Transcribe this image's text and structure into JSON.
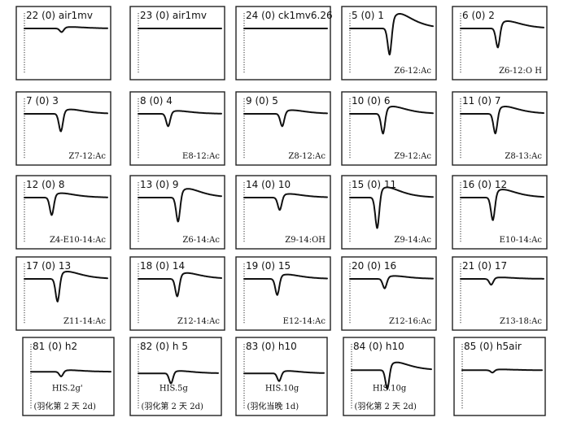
{
  "chart_data": [
    {
      "type": "line",
      "header": "22 (0)  air1mv",
      "label": "",
      "note": "",
      "baseline": 0.3,
      "events": [
        {
          "x": 0.45,
          "dip": 0.05,
          "rise": 0.02
        }
      ]
    },
    {
      "type": "line",
      "header": "23 (0)  air1mv",
      "label": "",
      "note": "",
      "baseline": 0.3,
      "events": []
    },
    {
      "type": "line",
      "header": "24 (0)  ck1mv6.26",
      "label": "",
      "note": "",
      "baseline": 0.3,
      "events": []
    },
    {
      "type": "line",
      "header": "5 (0)  1",
      "label": "Z6-12:Ac",
      "note": "",
      "baseline": 0.3,
      "events": [
        {
          "x": 0.48,
          "dip": 0.36,
          "rise": 0.2
        }
      ]
    },
    {
      "type": "line",
      "header": "6 (0)  2",
      "label": "Z6-12:O H",
      "note": "",
      "baseline": 0.3,
      "events": [
        {
          "x": 0.45,
          "dip": 0.26,
          "rise": 0.1
        }
      ]
    },
    {
      "type": "line",
      "header": "7 (0)  3",
      "label": "Z7-12:Ac",
      "note": "",
      "baseline": 0.3,
      "events": [
        {
          "x": 0.44,
          "dip": 0.24,
          "rise": 0.06
        }
      ]
    },
    {
      "type": "line",
      "header": "8 (0)  4",
      "label": "E8-12:Ac",
      "note": "",
      "baseline": 0.3,
      "events": [
        {
          "x": 0.36,
          "dip": 0.17,
          "rise": 0.04
        }
      ]
    },
    {
      "type": "line",
      "header": "9 (0)  5",
      "label": "Z8-12:Ac",
      "note": "",
      "baseline": 0.3,
      "events": [
        {
          "x": 0.46,
          "dip": 0.17,
          "rise": 0.05
        }
      ]
    },
    {
      "type": "line",
      "header": "10 (0)  6",
      "label": "Z9-12:Ac",
      "note": "",
      "baseline": 0.3,
      "events": [
        {
          "x": 0.4,
          "dip": 0.27,
          "rise": 0.1
        }
      ]
    },
    {
      "type": "line",
      "header": "11 (0)  7",
      "label": "Z8-13:Ac",
      "note": "",
      "baseline": 0.3,
      "events": [
        {
          "x": 0.42,
          "dip": 0.27,
          "rise": 0.1
        }
      ]
    },
    {
      "type": "line",
      "header": "12 (0)  8",
      "label": "Z4-E10-14:Ac",
      "note": "",
      "baseline": 0.3,
      "events": [
        {
          "x": 0.33,
          "dip": 0.24,
          "rise": 0.06
        }
      ]
    },
    {
      "type": "line",
      "header": "13 (0)  9",
      "label": "Z6-14:Ac",
      "note": "",
      "baseline": 0.3,
      "events": [
        {
          "x": 0.48,
          "dip": 0.33,
          "rise": 0.12
        }
      ]
    },
    {
      "type": "line",
      "header": "14 (0)  10",
      "label": "Z9-14:OH",
      "note": "",
      "baseline": 0.3,
      "events": [
        {
          "x": 0.43,
          "dip": 0.17,
          "rise": 0.05
        }
      ]
    },
    {
      "type": "line",
      "header": "15 (0)  11",
      "label": "Z9-14:Ac",
      "note": "",
      "baseline": 0.3,
      "events": [
        {
          "x": 0.33,
          "dip": 0.42,
          "rise": 0.14
        }
      ]
    },
    {
      "type": "line",
      "header": "16 (0)  12",
      "label": "E10-14:Ac",
      "note": "",
      "baseline": 0.3,
      "events": [
        {
          "x": 0.39,
          "dip": 0.31,
          "rise": 0.11
        }
      ]
    },
    {
      "type": "line",
      "header": "17 (0)  13",
      "label": "Z11-14:Ac",
      "note": "",
      "baseline": 0.3,
      "events": [
        {
          "x": 0.4,
          "dip": 0.31,
          "rise": 0.1
        }
      ]
    },
    {
      "type": "line",
      "header": "18 (0)  14",
      "label": "Z12-14:Ac",
      "note": "",
      "baseline": 0.3,
      "events": [
        {
          "x": 0.47,
          "dip": 0.24,
          "rise": 0.08
        }
      ]
    },
    {
      "type": "line",
      "header": "19 (0)  15",
      "label": "E12-14:Ac",
      "note": "",
      "baseline": 0.3,
      "events": [
        {
          "x": 0.4,
          "dip": 0.22,
          "rise": 0.06
        }
      ]
    },
    {
      "type": "line",
      "header": "20 (0)  16",
      "label": "Z12-16:Ac",
      "note": "",
      "baseline": 0.3,
      "events": [
        {
          "x": 0.42,
          "dip": 0.13,
          "rise": 0.04
        }
      ]
    },
    {
      "type": "line",
      "header": "21 (0)  17",
      "label": "Z13-18:Ac",
      "note": "",
      "baseline": 0.3,
      "events": [
        {
          "x": 0.37,
          "dip": 0.08,
          "rise": 0.02
        }
      ]
    },
    {
      "type": "line",
      "header": "81 (0)  h2",
      "label": "HIS.2g'",
      "note": "(羽化第 2 天  2d)",
      "baseline": 0.44,
      "events": [
        {
          "x": 0.38,
          "dip": 0.06,
          "rise": 0.02
        }
      ]
    },
    {
      "type": "line",
      "header": "82 (0)  h 5",
      "label": "HIS.5g",
      "note": "(羽化第 2 天  2d)",
      "baseline": 0.46,
      "events": [
        {
          "x": 0.41,
          "dip": 0.13,
          "rise": 0.03
        }
      ]
    },
    {
      "type": "line",
      "header": "83 (0)  h10",
      "label": "HIS.10g",
      "note": "(羽化当晚  1d)",
      "baseline": 0.46,
      "events": [
        {
          "x": 0.44,
          "dip": 0.1,
          "rise": 0.03
        }
      ]
    },
    {
      "type": "line",
      "header": "84 (0)  h10",
      "label": "HIS.10g",
      "note": "(羽化第 2 天  2d)",
      "baseline": 0.42,
      "events": [
        {
          "x": 0.45,
          "dip": 0.24,
          "rise": 0.1
        }
      ]
    },
    {
      "type": "line",
      "header": "85 (0)  h5air",
      "label": "",
      "note": "",
      "baseline": 0.42,
      "events": [
        {
          "x": 0.38,
          "dip": 0.03,
          "rise": 0.01
        }
      ]
    }
  ]
}
